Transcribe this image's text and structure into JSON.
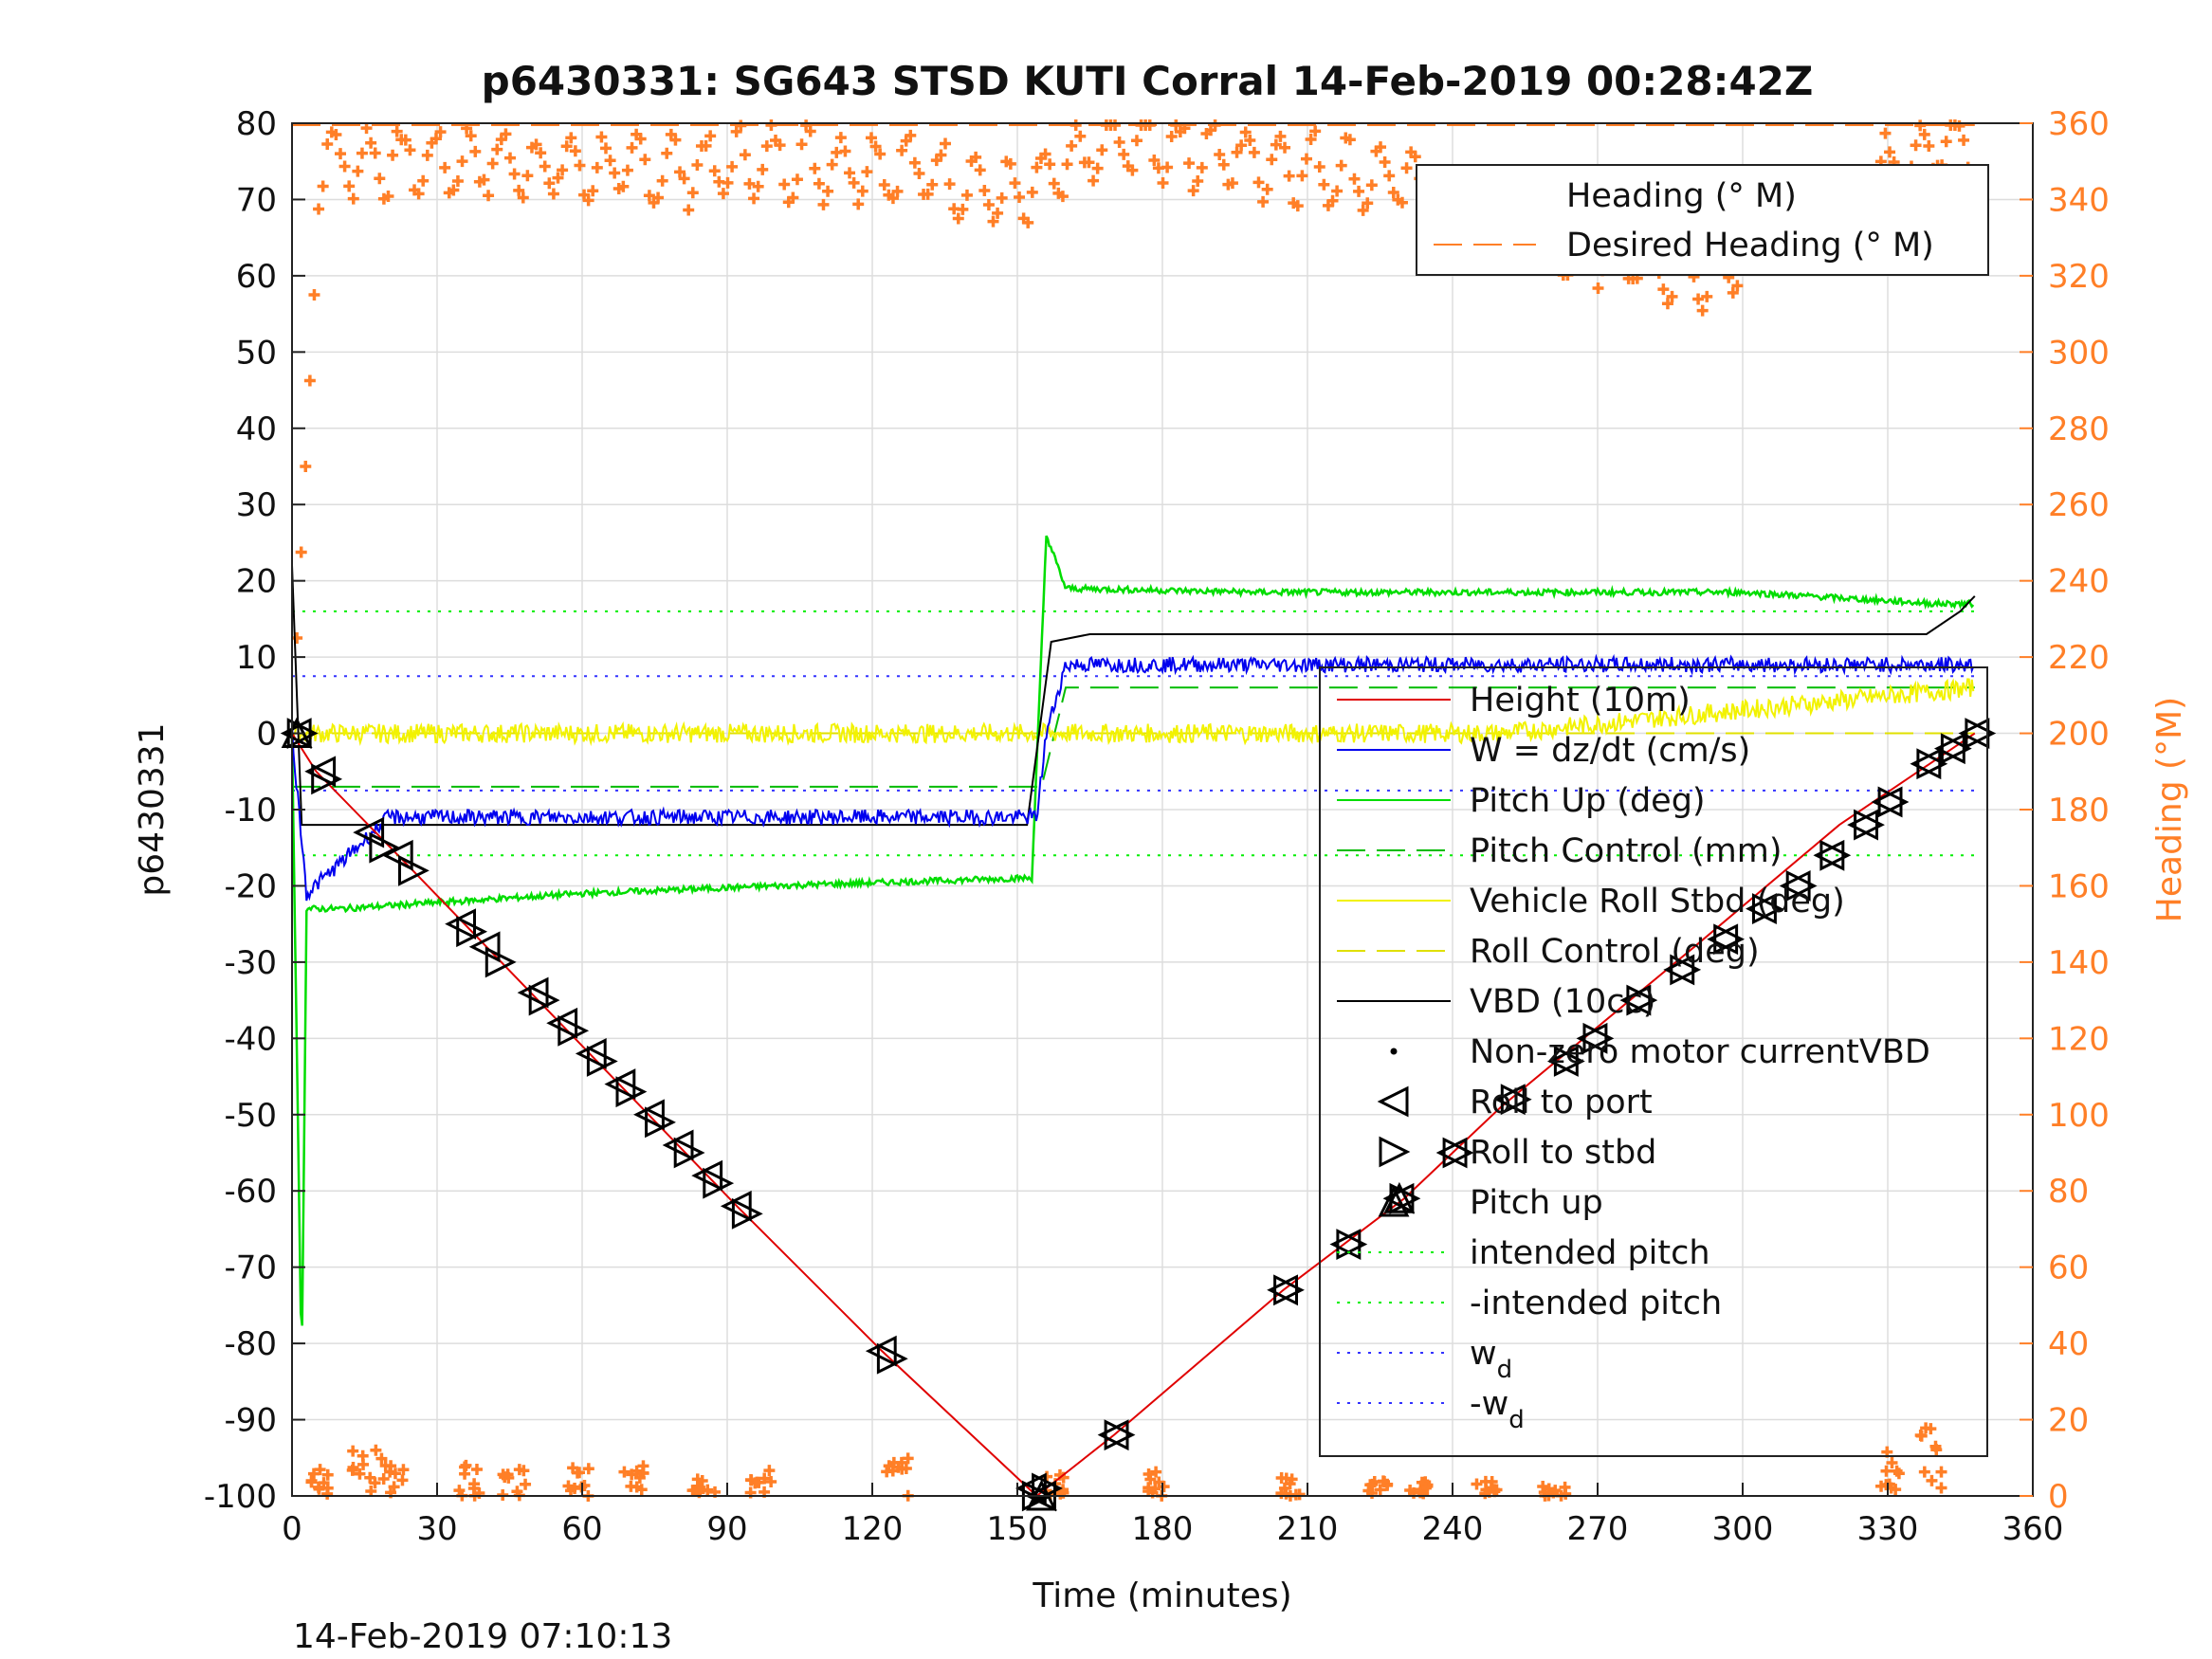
{
  "chart_data": {
    "type": "line",
    "title": "p6430331: SG643 STSD KUTI Corral 14-Feb-2019 00:28:42Z",
    "xlabel": "Time (minutes)",
    "ylabel": "p6430331",
    "y2label": "Heading (°M)",
    "xlim": [
      0,
      360
    ],
    "ylim": [
      -100,
      80
    ],
    "y2lim": [
      0,
      360
    ],
    "xticks": [
      "0",
      "30",
      "60",
      "90",
      "120",
      "150",
      "180",
      "210",
      "240",
      "270",
      "300",
      "330",
      "360"
    ],
    "yticks": [
      "80",
      "70",
      "60",
      "50",
      "40",
      "30",
      "20",
      "10",
      "0",
      "-10",
      "-20",
      "-30",
      "-40",
      "-50",
      "-60",
      "-70",
      "-80",
      "-90",
      "-100"
    ],
    "y2ticks": [
      "360",
      "340",
      "320",
      "300",
      "280",
      "260",
      "240",
      "220",
      "200",
      "180",
      "160",
      "140",
      "120",
      "100",
      "80",
      "60",
      "40",
      "20",
      "0"
    ],
    "grid": true,
    "footer": "14-Feb-2019 07:10:13",
    "colors": {
      "height": "#e00000",
      "w": "#0000ee",
      "pitch_up": "#00dd00",
      "pitch_control": "#00bb00",
      "roll": "#f2f200",
      "roll_control": "#e0e000",
      "vbd": "#000000",
      "heading": "#ff7f27",
      "intended": "#00ee00",
      "wd": "#3333ff"
    },
    "legend_right": {
      "position": "top-right",
      "entries": [
        "Heading (° M)",
        "Desired Heading (° M)"
      ]
    },
    "legend_left": {
      "position": "center-right",
      "entries": [
        "Height (10m)",
        "W = dz/dt (cm/s)",
        "Pitch Up (deg)",
        "Pitch Control (mm)",
        "Vehicle Roll Stbd (deg)",
        "Roll Control (deg)",
        "VBD (10cc)",
        "Non-zero motor currentVBD",
        "Roll to port",
        "Roll to stbd",
        "Pitch up",
        "intended pitch",
        "-intended pitch",
        "w",
        "-w"
      ],
      "w_subscript": "d"
    },
    "series": [
      {
        "name": "Height (10m)",
        "x": [
          0,
          5,
          25,
          92,
          122,
          154,
          170,
          205,
          230,
          250,
          290,
          320,
          348
        ],
        "y": [
          0,
          -5,
          -18,
          -62,
          -81,
          -100,
          -92,
          -73,
          -61,
          -49,
          -28,
          -12,
          0
        ]
      },
      {
        "name": "W = dz/dt (cm/s)",
        "x": [
          0,
          3,
          10,
          20,
          60,
          120,
          150,
          154,
          156,
          160,
          200,
          300,
          348
        ],
        "y": [
          0,
          -21,
          -17,
          -11,
          -11,
          -11,
          -11,
          -11,
          0,
          9,
          9,
          9,
          9
        ]
      },
      {
        "name": "Pitch Up (deg)",
        "x": [
          0,
          2,
          3,
          10,
          60,
          100,
          150,
          153,
          156,
          160,
          200,
          300,
          340,
          348
        ],
        "y": [
          0,
          -84,
          -23,
          -23,
          -21,
          -20,
          -19,
          -19,
          26,
          19,
          18.5,
          18.5,
          17,
          17
        ]
      },
      {
        "name": "Vehicle Roll Stbd (deg)",
        "x": [
          0,
          5,
          60,
          120,
          153,
          160,
          250,
          348
        ],
        "y": [
          0,
          0,
          0,
          0,
          0,
          0,
          0,
          6
        ]
      },
      {
        "name": "VBD (10cc)",
        "x": [
          0,
          2,
          3,
          152,
          157,
          165,
          330,
          338,
          345,
          348
        ],
        "y": [
          22,
          -12,
          -12,
          -12,
          12,
          13,
          13,
          13,
          16,
          18
        ]
      },
      {
        "name": "Heading (° M)",
        "x": [
          0,
          5,
          20,
          40,
          60,
          80,
          100,
          130,
          150,
          170,
          200,
          230,
          260,
          290,
          320,
          340,
          348
        ],
        "y": [
          200,
          350,
          350,
          350,
          348,
          348,
          350,
          348,
          340,
          356,
          350,
          345,
          330,
          320,
          340,
          355,
          355
        ]
      },
      {
        "name": "Desired Heading (° M)",
        "x": [
          0,
          348
        ],
        "y": [
          359.5,
          359.5
        ]
      },
      {
        "name": "intended pitch",
        "x": [
          0,
          348
        ],
        "y": [
          16,
          16
        ]
      },
      {
        "name": "-intended pitch",
        "x": [
          0,
          348
        ],
        "y": [
          -16,
          -16
        ]
      },
      {
        "name": "w_d",
        "x": [
          0,
          348
        ],
        "y": [
          7.5,
          7.5
        ]
      },
      {
        "name": "-w_d",
        "x": [
          0,
          348
        ],
        "y": [
          -7.5,
          -7.5
        ]
      },
      {
        "name": "Pitch Control (mm)",
        "x": [
          0,
          155,
          160,
          348
        ],
        "y": [
          -7,
          -7,
          6,
          6
        ]
      },
      {
        "name": "Roll Control (deg)",
        "x": [
          0,
          348
        ],
        "y": [
          0,
          0
        ]
      }
    ],
    "markers": {
      "roll_to_port": [
        [
          1,
          0
        ],
        [
          6,
          -5
        ],
        [
          16,
          -13
        ],
        [
          22,
          -16
        ],
        [
          35,
          -25
        ],
        [
          40,
          -28
        ],
        [
          50,
          -34
        ],
        [
          56,
          -38
        ],
        [
          62,
          -42
        ],
        [
          68,
          -46
        ],
        [
          74,
          -50
        ],
        [
          80,
          -54
        ],
        [
          86,
          -58
        ],
        [
          92,
          -62
        ],
        [
          122,
          -81
        ],
        [
          153,
          -99
        ],
        [
          155,
          -100
        ],
        [
          170,
          -92
        ],
        [
          205,
          -73
        ],
        [
          218,
          -67
        ],
        [
          229,
          -61
        ],
        [
          240,
          -55
        ],
        [
          252,
          -48
        ],
        [
          263,
          -43
        ],
        [
          269,
          -40
        ],
        [
          278,
          -35
        ],
        [
          287,
          -31
        ],
        [
          296,
          -27
        ],
        [
          304,
          -23
        ],
        [
          311,
          -20
        ],
        [
          318,
          -16
        ],
        [
          325,
          -12
        ],
        [
          330,
          -9
        ],
        [
          338,
          -4
        ],
        [
          343,
          -2
        ],
        [
          348,
          0
        ]
      ],
      "roll_to_stbd": [
        [
          2,
          0
        ],
        [
          7,
          -6
        ],
        [
          19,
          -15
        ],
        [
          25,
          -18
        ],
        [
          37,
          -26
        ],
        [
          43,
          -30
        ],
        [
          52,
          -35
        ],
        [
          58,
          -39
        ],
        [
          64,
          -43
        ],
        [
          70,
          -47
        ],
        [
          76,
          -51
        ],
        [
          82,
          -55
        ],
        [
          88,
          -59
        ],
        [
          94,
          -63
        ],
        [
          124,
          -82
        ],
        [
          154,
          -100
        ],
        [
          156,
          -99
        ],
        [
          171,
          -92
        ],
        [
          206,
          -73
        ],
        [
          219,
          -67
        ],
        [
          230,
          -61
        ],
        [
          241,
          -55
        ],
        [
          253,
          -48
        ],
        [
          264,
          -43
        ],
        [
          270,
          -40
        ],
        [
          279,
          -35
        ],
        [
          288,
          -31
        ],
        [
          297,
          -27
        ],
        [
          305,
          -23
        ],
        [
          312,
          -20
        ],
        [
          319,
          -16
        ],
        [
          326,
          -12
        ],
        [
          331,
          -9
        ],
        [
          339,
          -4
        ],
        [
          344,
          -2
        ],
        [
          349,
          0
        ]
      ],
      "pitch_up": [
        [
          1,
          0
        ],
        [
          229,
          -61
        ],
        [
          155,
          -100
        ]
      ]
    },
    "heading_low_clusters": [
      [
        5,
        8
      ],
      [
        14,
        15
      ],
      [
        20,
        10
      ],
      [
        36,
        8
      ],
      [
        45,
        10
      ],
      [
        58,
        8
      ],
      [
        70,
        8
      ],
      [
        84,
        9
      ],
      [
        96,
        7
      ],
      [
        124,
        10
      ],
      [
        157,
        6
      ],
      [
        178,
        7
      ],
      [
        205,
        5
      ],
      [
        224,
        4
      ],
      [
        232,
        5
      ],
      [
        246,
        4
      ],
      [
        260,
        3
      ],
      [
        330,
        12
      ],
      [
        338,
        18
      ]
    ]
  }
}
